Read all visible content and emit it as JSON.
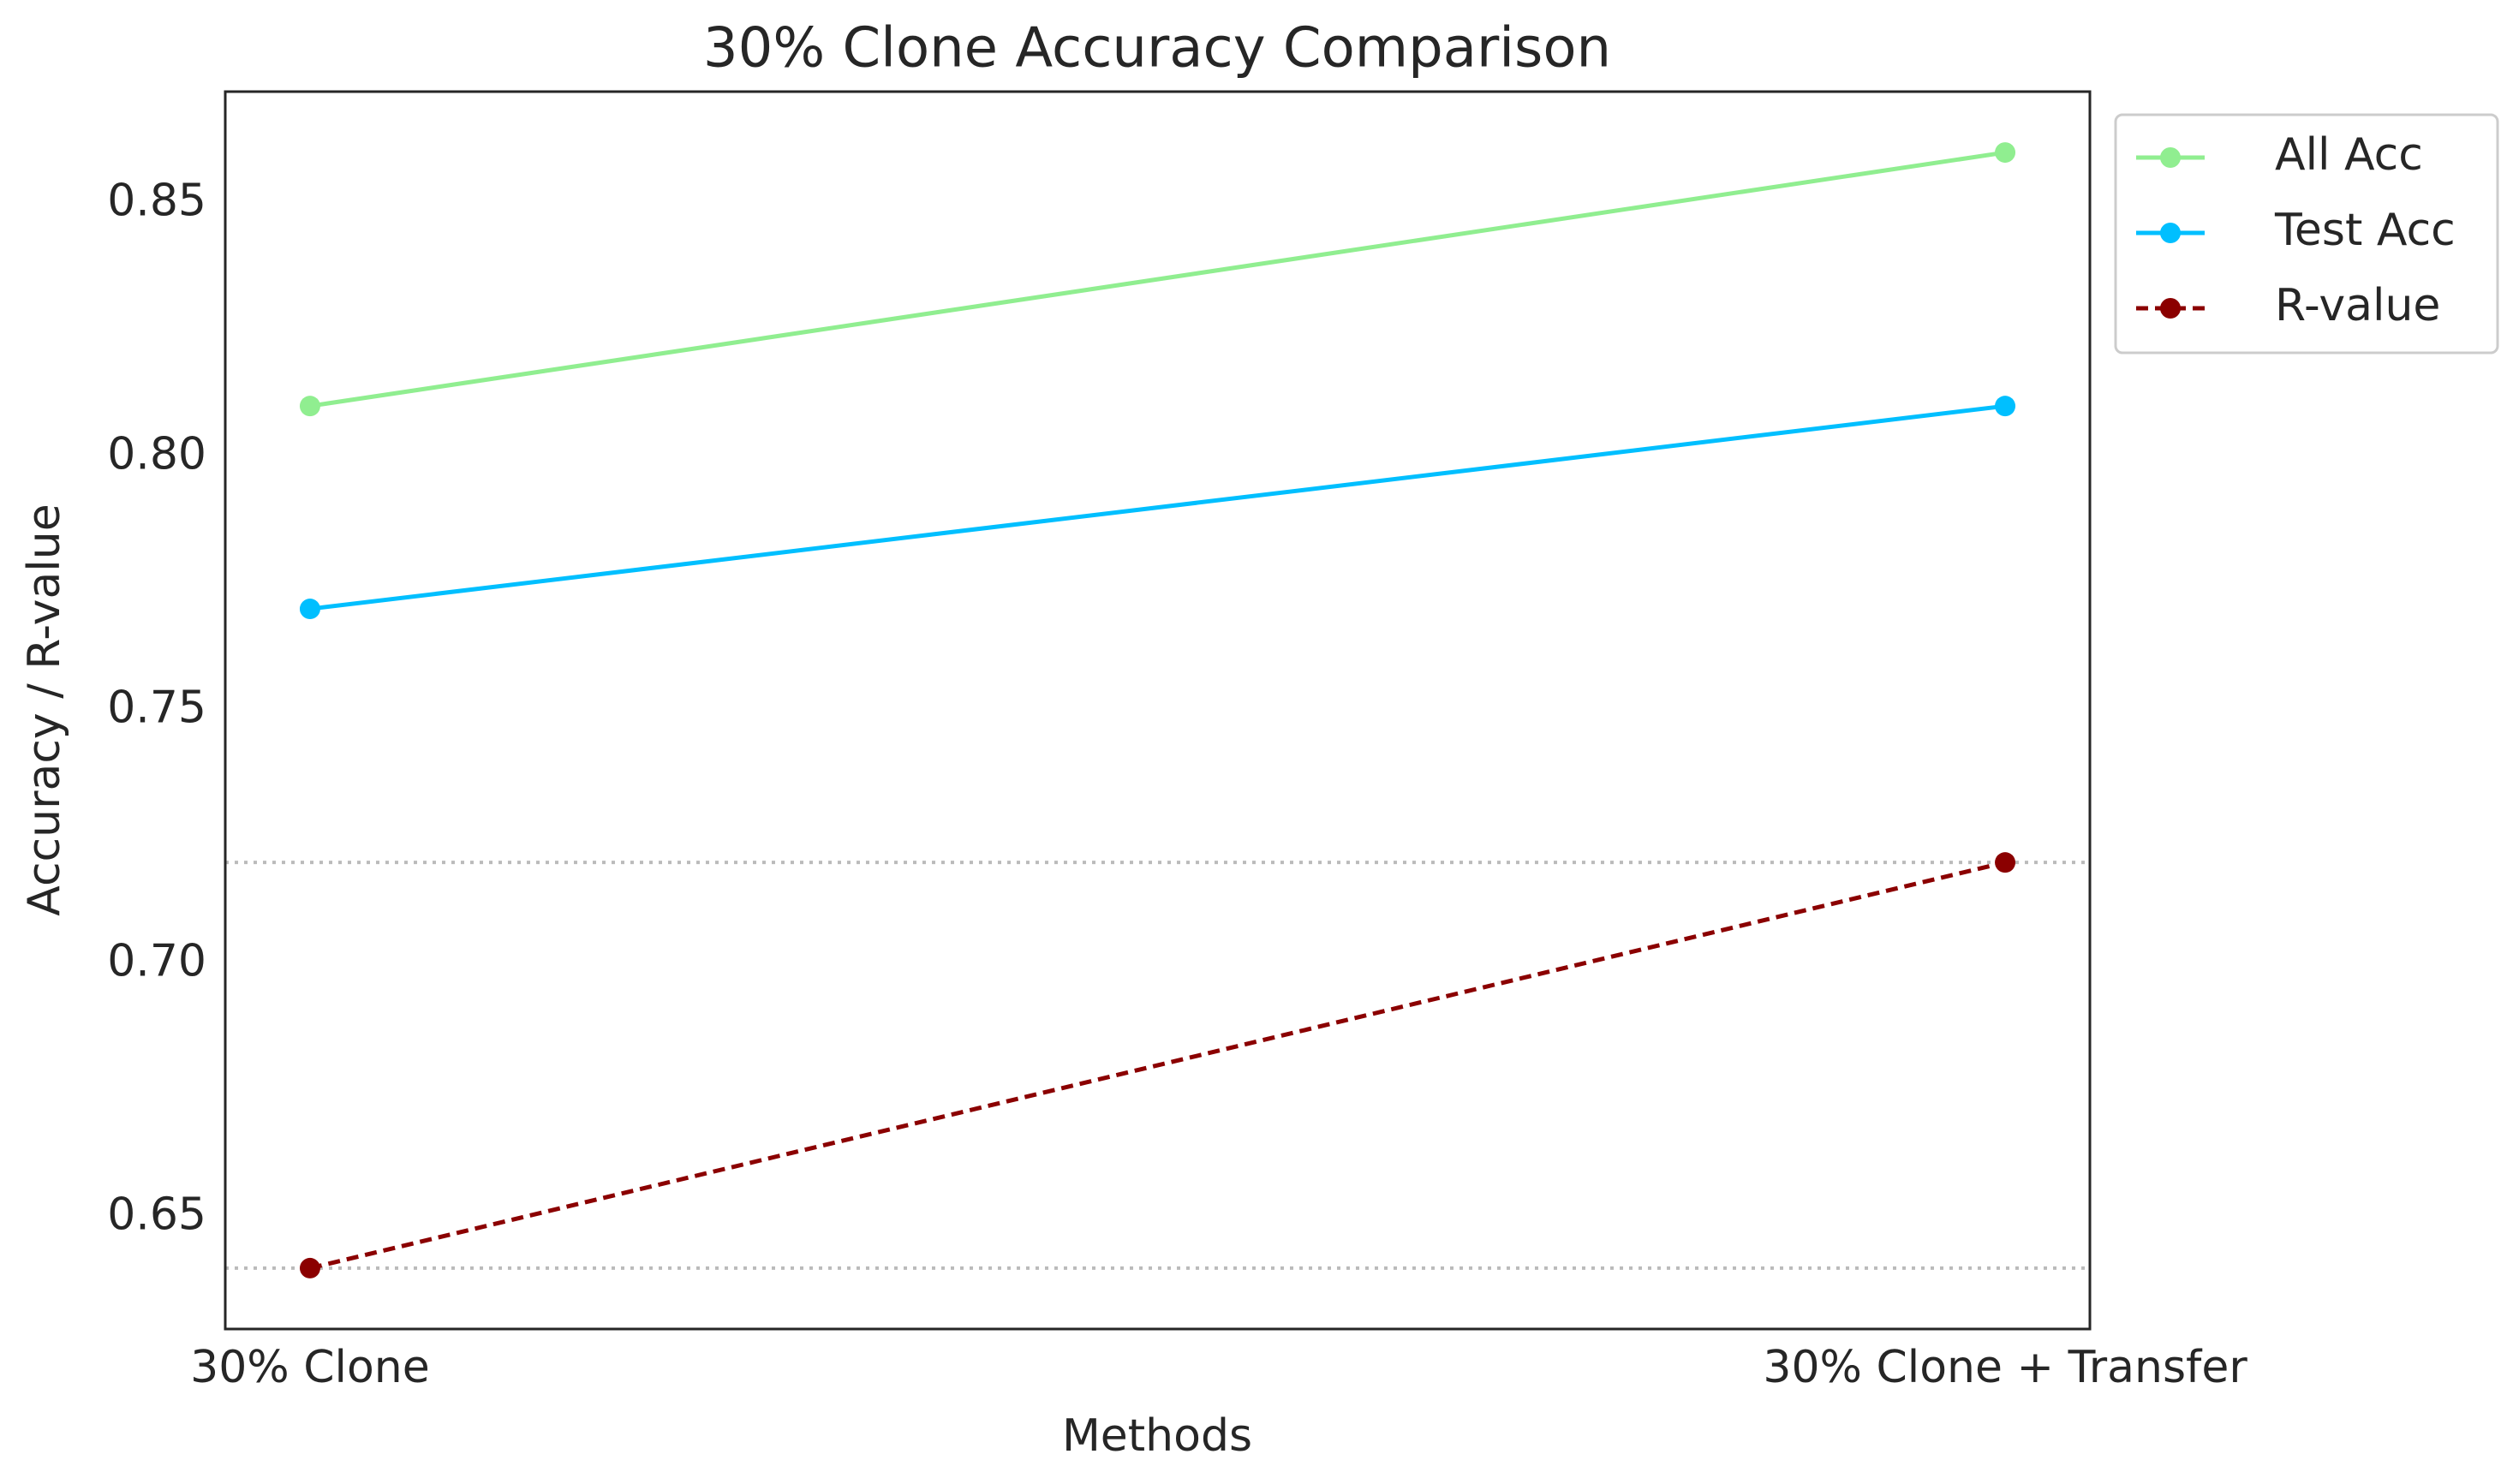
{
  "chart_data": {
    "type": "line",
    "title": "30% Clone Accuracy Comparison",
    "x_label": "Methods",
    "y_label": "Accuracy / R-value",
    "categories": [
      "30% Clone",
      "30% Clone + Transfer"
    ],
    "series": [
      {
        "name": "All Acc",
        "color": "#90ee90",
        "linestyle": "solid",
        "values": [
          0.81,
          0.86
        ]
      },
      {
        "name": "Test Acc",
        "color": "#00bfff",
        "linestyle": "solid",
        "values": [
          0.77,
          0.81
        ]
      },
      {
        "name": "R-value",
        "color": "#8b0000",
        "linestyle": "dashed",
        "values": [
          0.64,
          0.72
        ]
      }
    ],
    "hlines": [
      0.72,
      0.64
    ],
    "hline_color": "#bbbbbb",
    "ylim": [
      0.628,
      0.872
    ],
    "yticks": [
      {
        "value": 0.65,
        "label": "0.65"
      },
      {
        "value": 0.7,
        "label": "0.70"
      },
      {
        "value": 0.75,
        "label": "0.75"
      },
      {
        "value": 0.8,
        "label": "0.80"
      },
      {
        "value": 0.85,
        "label": "0.85"
      }
    ],
    "grid": false,
    "legend": "outside-upper-right"
  }
}
